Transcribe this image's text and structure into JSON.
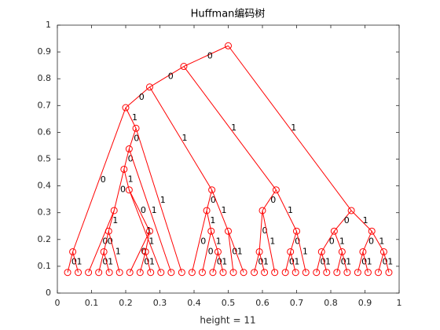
{
  "chart_data": {
    "type": "tree",
    "title": "Huffman编码树",
    "xlabel": "height = 11",
    "color": "#ff0000",
    "xlim": [
      0,
      1
    ],
    "ylim": [
      0,
      1
    ],
    "xticks": [
      0,
      0.1,
      0.2,
      0.3,
      0.4,
      0.5,
      0.6,
      0.7,
      0.8,
      0.9,
      1
    ],
    "yticks": [
      0,
      0.1,
      0.2,
      0.3,
      0.4,
      0.5,
      0.6,
      0.7,
      0.8,
      0.9,
      1
    ],
    "x": [
      0.5,
      0.37,
      0.27,
      0.2,
      0.045,
      0.23,
      0.21,
      0.195,
      0.166,
      0.15,
      0.136,
      0.21,
      0.27,
      0.258,
      0.452,
      0.437,
      0.45,
      0.47,
      0.5,
      0.64,
      0.6,
      0.591,
      0.7,
      0.682,
      0.86,
      0.81,
      0.773,
      0.833,
      0.92,
      0.894,
      0.955,
      0.03,
      0.061,
      0.091,
      0.121,
      0.152,
      0.182,
      0.212,
      0.242,
      0.273,
      0.303,
      0.333,
      0.364,
      0.394,
      0.424,
      0.455,
      0.485,
      0.515,
      0.545,
      0.576,
      0.606,
      0.636,
      0.667,
      0.697,
      0.727,
      0.758,
      0.788,
      0.818,
      0.848,
      0.879,
      0.909,
      0.939,
      0.97
    ],
    "y": [
      0.923,
      0.846,
      0.769,
      0.692,
      0.154,
      0.615,
      0.538,
      0.462,
      0.308,
      0.231,
      0.154,
      0.385,
      0.231,
      0.154,
      0.385,
      0.308,
      0.231,
      0.154,
      0.231,
      0.385,
      0.308,
      0.154,
      0.231,
      0.154,
      0.308,
      0.231,
      0.154,
      0.154,
      0.231,
      0.154,
      0.154,
      0.077,
      0.077,
      0.077,
      0.077,
      0.077,
      0.077,
      0.077,
      0.077,
      0.077,
      0.077,
      0.077,
      0.077,
      0.077,
      0.077,
      0.077,
      0.077,
      0.077,
      0.077,
      0.077,
      0.077,
      0.077,
      0.077,
      0.077,
      0.077,
      0.077,
      0.077,
      0.077,
      0.077,
      0.077,
      0.077,
      0.077,
      0.077
    ],
    "edges": [
      [
        0,
        1,
        "0"
      ],
      [
        0,
        24,
        "1"
      ],
      [
        1,
        2,
        "0"
      ],
      [
        1,
        19,
        "1"
      ],
      [
        2,
        3,
        "0"
      ],
      [
        2,
        14,
        "1"
      ],
      [
        3,
        4,
        "0"
      ],
      [
        3,
        5,
        "1"
      ],
      [
        4,
        31,
        "0"
      ],
      [
        4,
        32,
        "1"
      ],
      [
        5,
        6,
        "0"
      ],
      [
        5,
        42,
        "1"
      ],
      [
        6,
        7,
        "0"
      ],
      [
        6,
        41,
        "1"
      ],
      [
        7,
        8,
        "0"
      ],
      [
        7,
        11,
        "1"
      ],
      [
        8,
        33,
        "0"
      ],
      [
        8,
        9,
        "1"
      ],
      [
        9,
        10,
        "0"
      ],
      [
        9,
        36,
        "1"
      ],
      [
        10,
        34,
        "0"
      ],
      [
        10,
        35,
        "1"
      ],
      [
        11,
        12,
        "0"
      ],
      [
        11,
        40,
        "1"
      ],
      [
        12,
        37,
        "0"
      ],
      [
        12,
        13,
        "1"
      ],
      [
        13,
        38,
        "0"
      ],
      [
        13,
        39,
        "1"
      ],
      [
        14,
        15,
        "0"
      ],
      [
        14,
        18,
        "1"
      ],
      [
        15,
        43,
        "0"
      ],
      [
        15,
        16,
        "1"
      ],
      [
        16,
        44,
        "0"
      ],
      [
        16,
        17,
        "1"
      ],
      [
        17,
        45,
        "0"
      ],
      [
        17,
        46,
        "1"
      ],
      [
        18,
        47,
        "0"
      ],
      [
        18,
        48,
        "1"
      ],
      [
        19,
        20,
        "0"
      ],
      [
        19,
        22,
        "1"
      ],
      [
        20,
        21,
        "0"
      ],
      [
        20,
        51,
        "1"
      ],
      [
        21,
        49,
        "0"
      ],
      [
        21,
        50,
        "1"
      ],
      [
        22,
        23,
        "0"
      ],
      [
        22,
        54,
        "1"
      ],
      [
        23,
        52,
        "0"
      ],
      [
        23,
        53,
        "1"
      ],
      [
        24,
        25,
        "0"
      ],
      [
        24,
        28,
        "1"
      ],
      [
        25,
        26,
        "0"
      ],
      [
        25,
        27,
        "1"
      ],
      [
        26,
        55,
        "0"
      ],
      [
        26,
        56,
        "1"
      ],
      [
        27,
        57,
        "0"
      ],
      [
        27,
        58,
        "1"
      ],
      [
        28,
        29,
        "0"
      ],
      [
        28,
        30,
        "1"
      ],
      [
        29,
        59,
        "0"
      ],
      [
        29,
        60,
        "1"
      ],
      [
        30,
        61,
        "0"
      ],
      [
        30,
        62,
        "1"
      ]
    ]
  }
}
